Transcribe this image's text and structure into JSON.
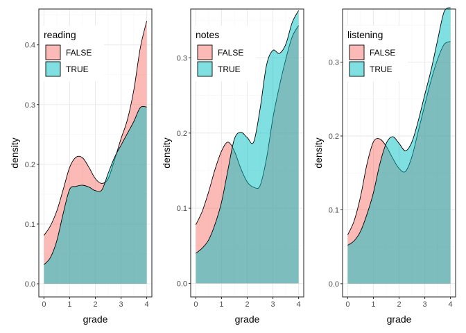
{
  "colors": {
    "false_fill": "#F8766D",
    "true_fill": "#00BFC4",
    "grid_major": "#ebebeb",
    "grid_minor": "#f5f5f5",
    "panel_border": "#333333",
    "outline": "#000000"
  },
  "chart_data": [
    {
      "type": "area",
      "subtype": "density",
      "xlabel": "grade",
      "ylabel": "density",
      "xlim": [
        -0.2,
        4.2
      ],
      "ylim": [
        -0.022,
        0.46
      ],
      "xticks": [
        0,
        1,
        2,
        3,
        4
      ],
      "xtick_labels": [
        "0",
        "1",
        "2",
        "3",
        "4"
      ],
      "yticks": [
        0.0,
        0.1,
        0.2,
        0.3,
        0.4
      ],
      "ytick_labels": [
        "0.0",
        "0.1",
        "0.2",
        "0.3",
        "0.4"
      ],
      "grid": true,
      "legend": {
        "title": "reading",
        "position": "top-left"
      },
      "x": [
        0,
        0.25,
        0.5,
        0.75,
        1.0,
        1.25,
        1.5,
        1.75,
        2.0,
        2.25,
        2.5,
        2.75,
        3.0,
        3.25,
        3.5,
        3.75,
        4.0
      ],
      "series": [
        {
          "name": "FALSE",
          "values": [
            0.081,
            0.097,
            0.122,
            0.158,
            0.195,
            0.212,
            0.211,
            0.195,
            0.176,
            0.168,
            0.176,
            0.208,
            0.243,
            0.275,
            0.325,
            0.395,
            0.44
          ]
        },
        {
          "name": "TRUE",
          "values": [
            0.032,
            0.044,
            0.072,
            0.118,
            0.158,
            0.163,
            0.165,
            0.162,
            0.156,
            0.157,
            0.185,
            0.212,
            0.232,
            0.252,
            0.272,
            0.295,
            0.296
          ]
        }
      ]
    },
    {
      "type": "area",
      "subtype": "density",
      "xlabel": "grade",
      "ylabel": "density",
      "xlim": [
        -0.2,
        4.2
      ],
      "ylim": [
        -0.018,
        0.365
      ],
      "xticks": [
        0,
        1,
        2,
        3,
        4
      ],
      "xtick_labels": [
        "0",
        "1",
        "2",
        "3",
        "4"
      ],
      "yticks": [
        0.0,
        0.1,
        0.2,
        0.3
      ],
      "ytick_labels": [
        "0.0",
        "0.1",
        "0.2",
        "0.3"
      ],
      "grid": true,
      "legend": {
        "title": "notes",
        "position": "top-left"
      },
      "x": [
        0,
        0.25,
        0.5,
        0.75,
        1.0,
        1.25,
        1.5,
        1.75,
        2.0,
        2.25,
        2.5,
        2.75,
        3.0,
        3.25,
        3.5,
        3.75,
        4.0
      ],
      "series": [
        {
          "name": "FALSE",
          "values": [
            0.078,
            0.096,
            0.122,
            0.152,
            0.176,
            0.188,
            0.176,
            0.153,
            0.135,
            0.128,
            0.13,
            0.166,
            0.22,
            0.262,
            0.298,
            0.328,
            0.343
          ]
        },
        {
          "name": "TRUE",
          "values": [
            0.04,
            0.047,
            0.058,
            0.079,
            0.108,
            0.151,
            0.192,
            0.201,
            0.194,
            0.188,
            0.232,
            0.29,
            0.31,
            0.306,
            0.318,
            0.347,
            0.363
          ]
        }
      ]
    },
    {
      "type": "area",
      "subtype": "density",
      "xlabel": "grade",
      "ylabel": "density",
      "xlim": [
        -0.2,
        4.2
      ],
      "ylim": [
        -0.018,
        0.372
      ],
      "xticks": [
        0,
        1,
        2,
        3,
        4
      ],
      "xtick_labels": [
        "0",
        "1",
        "2",
        "3",
        "4"
      ],
      "yticks": [
        0.0,
        0.1,
        0.2,
        0.3
      ],
      "ytick_labels": [
        "0.0",
        "0.1",
        "0.2",
        "0.3"
      ],
      "grid": true,
      "legend": {
        "title": "listening",
        "position": "top-left"
      },
      "x": [
        0,
        0.25,
        0.5,
        0.75,
        1.0,
        1.25,
        1.5,
        1.75,
        2.0,
        2.25,
        2.5,
        2.75,
        3.0,
        3.25,
        3.5,
        3.75,
        4.0
      ],
      "series": [
        {
          "name": "FALSE",
          "values": [
            0.066,
            0.085,
            0.118,
            0.162,
            0.192,
            0.196,
            0.186,
            0.17,
            0.156,
            0.152,
            0.172,
            0.207,
            0.242,
            0.276,
            0.304,
            0.324,
            0.328
          ]
        },
        {
          "name": "TRUE",
          "values": [
            0.052,
            0.058,
            0.071,
            0.094,
            0.123,
            0.162,
            0.19,
            0.199,
            0.19,
            0.18,
            0.192,
            0.221,
            0.256,
            0.29,
            0.33,
            0.368,
            0.374
          ]
        }
      ]
    }
  ]
}
